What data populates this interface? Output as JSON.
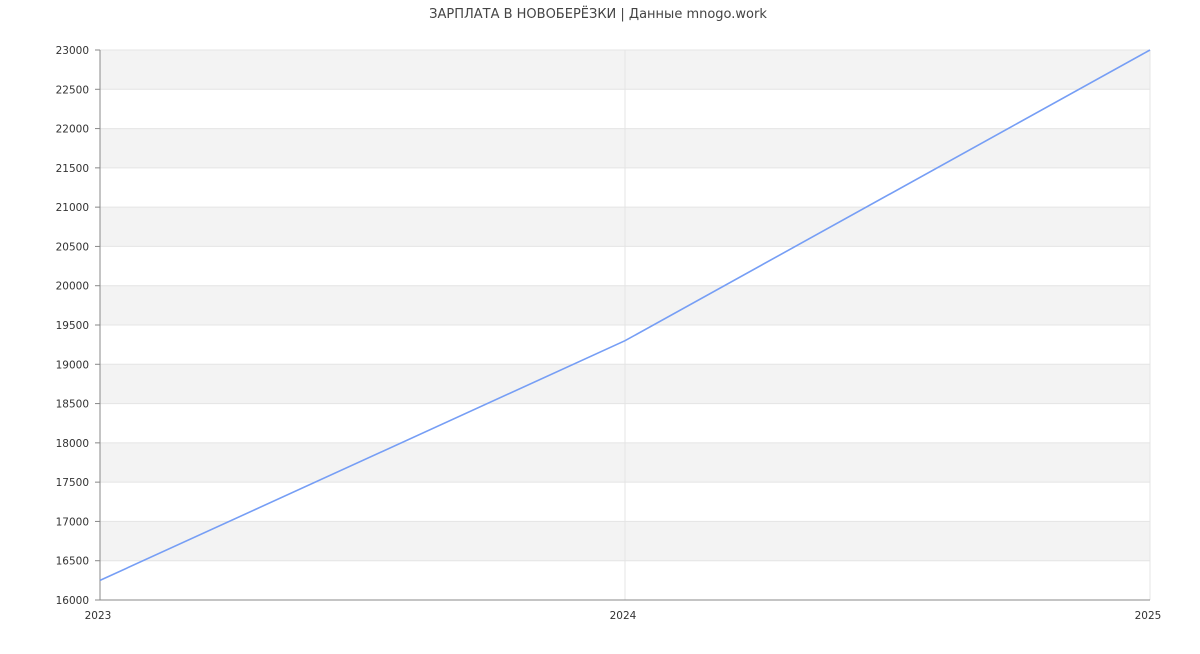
{
  "chart_data": {
    "type": "line",
    "title": "ЗАРПЛАТА В НОВОБЕРЁЗКИ | Данные mnogo.work",
    "x": [
      "2023",
      "2024",
      "2025"
    ],
    "series": [
      {
        "values": [
          16250,
          19300,
          23000
        ]
      }
    ],
    "ylim": [
      16000,
      23000
    ],
    "yticks": [
      16000,
      16500,
      17000,
      17500,
      18000,
      18500,
      19000,
      19500,
      20000,
      20500,
      21000,
      21500,
      22000,
      22500,
      23000
    ],
    "grid": true,
    "line_color": "#769ef5",
    "band_color": "#f3f3f3",
    "xlabel": "",
    "ylabel": ""
  }
}
